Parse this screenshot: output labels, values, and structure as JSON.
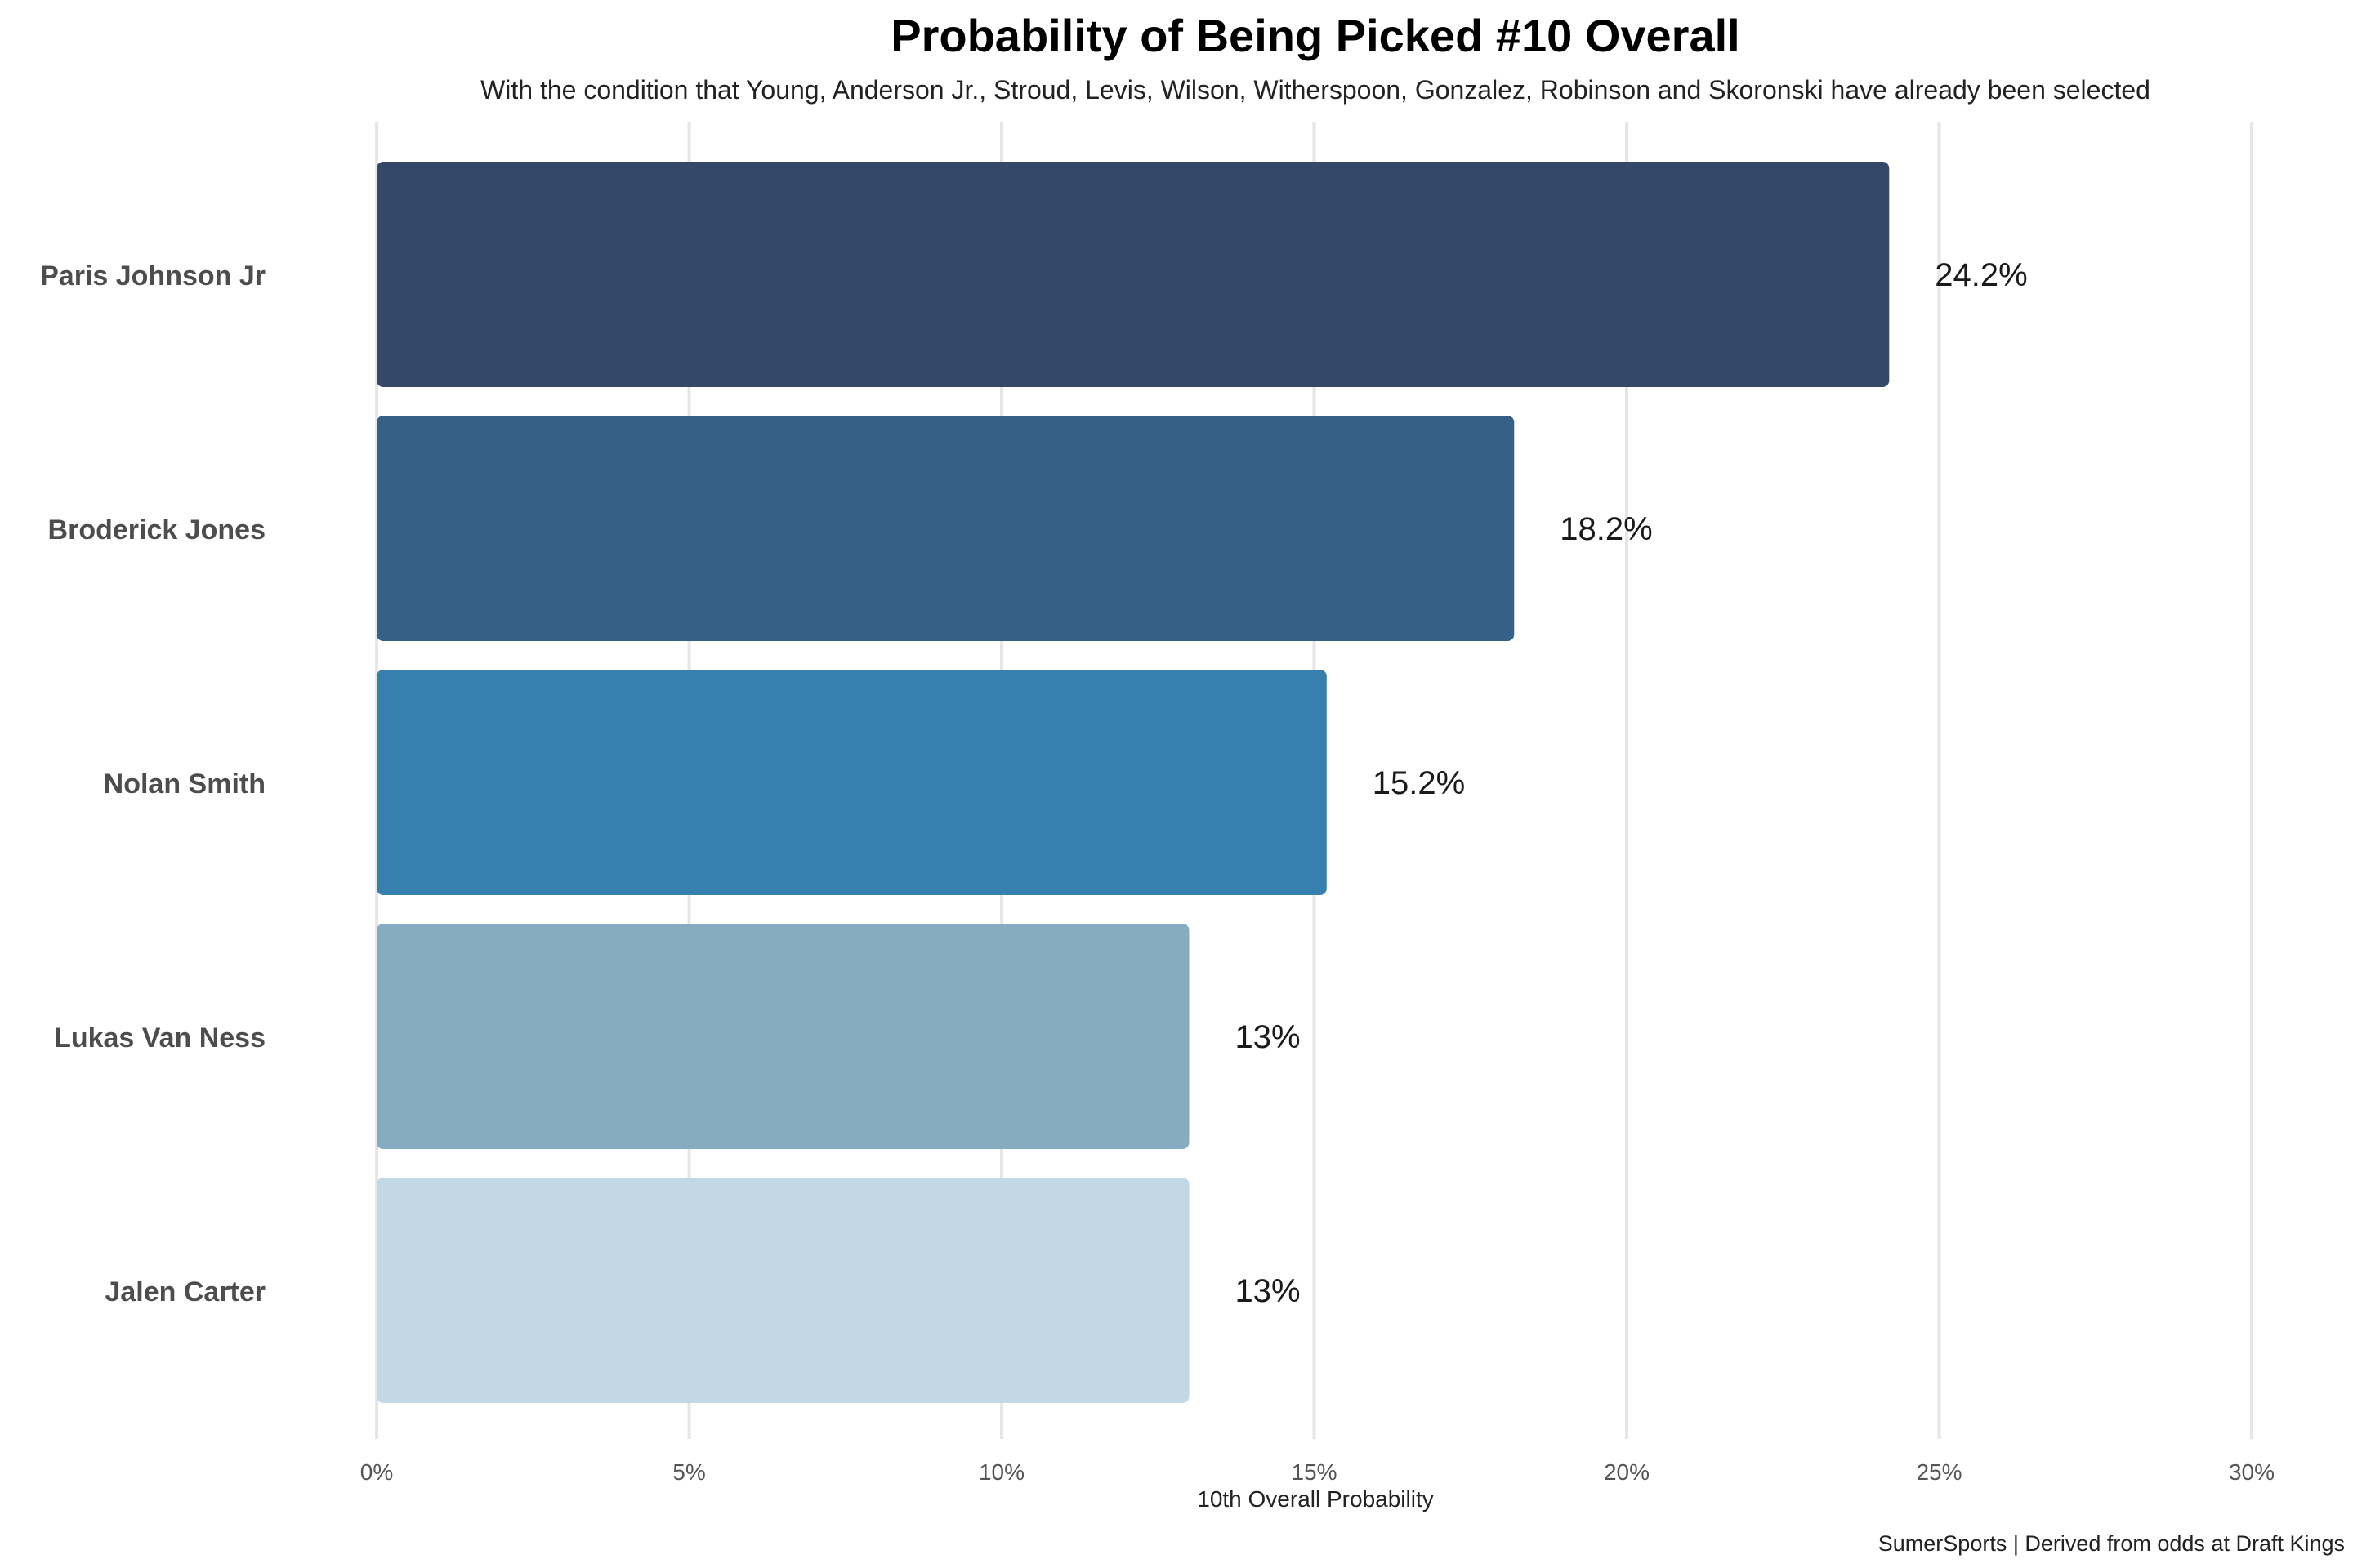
{
  "chart_data": {
    "type": "bar",
    "orientation": "horizontal",
    "title": "Probability of Being Picked #10 Overall",
    "subtitle": "With the condition that Young, Anderson Jr., Stroud, Levis, Wilson, Witherspoon, Gonzalez, Robinson and Skoronski have already been selected",
    "xlabel": "10th Overall Probability",
    "ylabel": "",
    "caption": "SumerSports | Derived from odds at Draft Kings",
    "xlim": [
      0,
      30
    ],
    "x_ticks": [
      0,
      5,
      10,
      15,
      20,
      25,
      30
    ],
    "x_tick_labels": [
      "0%",
      "5%",
      "10%",
      "15%",
      "20%",
      "25%",
      "30%"
    ],
    "grid": "vertical",
    "legend": "none",
    "categories": [
      "Paris Johnson Jr",
      "Broderick Jones",
      "Nolan Smith",
      "Lukas Van Ness",
      "Jalen Carter"
    ],
    "values": [
      24.2,
      18.2,
      15.2,
      13,
      13
    ],
    "value_labels": [
      "24.2%",
      "18.2%",
      "15.2%",
      "13%",
      "13%"
    ],
    "colors": [
      "#344868",
      "#356187",
      "#3780ae",
      "#85acc0",
      "#c2d8e5"
    ],
    "grid_color": "#e6e6e6",
    "label_color": "#4d4d4d"
  }
}
